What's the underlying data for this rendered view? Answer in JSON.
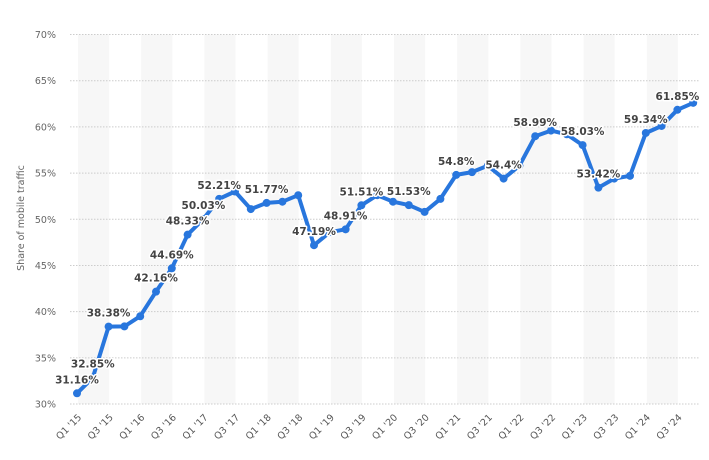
{
  "chart_data": {
    "type": "line",
    "title": "",
    "xlabel": "",
    "ylabel": "Share of mobile traffic",
    "ylim": [
      30,
      70
    ],
    "yticks": [
      "30%",
      "35%",
      "40%",
      "45%",
      "50%",
      "55%",
      "60%",
      "65%",
      "70%"
    ],
    "ytick_values": [
      30,
      35,
      40,
      45,
      50,
      55,
      60,
      65,
      70
    ],
    "grid": true,
    "legend": null,
    "x": [
      "Q1 '15",
      "Q2 '15",
      "Q3 '15",
      "Q4 '15",
      "Q1 '16",
      "Q2 '16",
      "Q3 '16",
      "Q4 '16",
      "Q1 '17",
      "Q2 '17",
      "Q3 '17",
      "Q4 '17",
      "Q1 '18",
      "Q2 '18",
      "Q3 '18",
      "Q4 '18",
      "Q1 '19",
      "Q2 '19",
      "Q3 '19",
      "Q4 '19",
      "Q1 '20",
      "Q2 '20",
      "Q3 '20",
      "Q4 '20",
      "Q1 '21",
      "Q2 '21",
      "Q3 '21",
      "Q4 '21",
      "Q1 '22",
      "Q2 '22",
      "Q3 '22",
      "Q4 '22",
      "Q1 '23",
      "Q2 '23",
      "Q3 '23",
      "Q4 '23",
      "Q1 '24",
      "Q2 '24",
      "Q3 '24",
      "Q4 '24"
    ],
    "xtick_labels": [
      "Q1 '15",
      "Q3 '15",
      "Q1 '16",
      "Q3 '16",
      "Q1 '17",
      "Q3 '17",
      "Q1 '18",
      "Q3 '18",
      "Q1 '19",
      "Q3 '19",
      "Q1 '20",
      "Q3 '20",
      "Q1 '21",
      "Q3 '21",
      "Q1 '22",
      "Q3 '22",
      "Q1 '23",
      "Q3 '23",
      "Q1 '24",
      "Q3 '24"
    ],
    "series": [
      {
        "name": "Share of mobile traffic",
        "color": "#2876dd",
        "values": [
          31.16,
          32.85,
          38.38,
          38.4,
          39.5,
          42.16,
          44.69,
          48.33,
          50.03,
          52.21,
          53.0,
          51.1,
          51.77,
          51.9,
          52.6,
          47.19,
          48.6,
          48.91,
          51.51,
          52.6,
          51.9,
          51.53,
          50.8,
          52.2,
          54.8,
          55.1,
          55.8,
          54.4,
          55.8,
          58.99,
          59.6,
          59.2,
          58.03,
          53.42,
          54.4,
          54.7,
          59.34,
          60.1,
          61.85,
          62.6
        ]
      }
    ],
    "data_labels": [
      {
        "index": 0,
        "text": "31.16%"
      },
      {
        "index": 1,
        "text": "32.85%"
      },
      {
        "index": 2,
        "text": "38.38%"
      },
      {
        "index": 5,
        "text": "42.16%"
      },
      {
        "index": 6,
        "text": "44.69%"
      },
      {
        "index": 7,
        "text": "48.33%"
      },
      {
        "index": 8,
        "text": "50.03%"
      },
      {
        "index": 9,
        "text": "52.21%"
      },
      {
        "index": 12,
        "text": "51.77%"
      },
      {
        "index": 15,
        "text": "47.19%"
      },
      {
        "index": 17,
        "text": "48.91%"
      },
      {
        "index": 18,
        "text": "51.51%"
      },
      {
        "index": 21,
        "text": "51.53%"
      },
      {
        "index": 24,
        "text": "54.8%"
      },
      {
        "index": 27,
        "text": "54.4%"
      },
      {
        "index": 29,
        "text": "58.99%"
      },
      {
        "index": 32,
        "text": "58.03%"
      },
      {
        "index": 33,
        "text": "53.42%"
      },
      {
        "index": 36,
        "text": "59.34%"
      },
      {
        "index": 38,
        "text": "61.85%"
      }
    ]
  },
  "colors": {
    "line": "#2876dd",
    "band": "#f7f7f7",
    "grid": "#cccccc",
    "label": "#444444"
  }
}
